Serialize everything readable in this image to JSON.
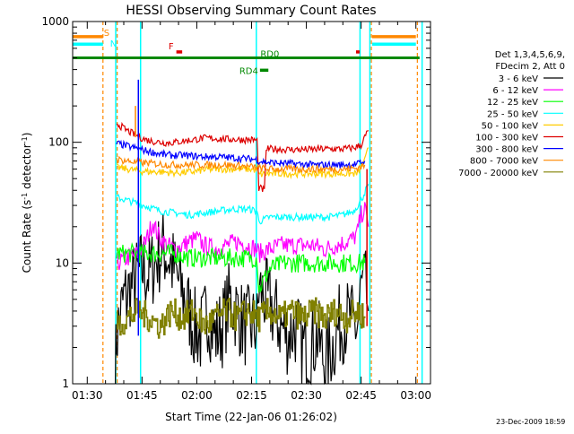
{
  "chart_data": {
    "type": "line",
    "title": "HESSI Observing Summary Count Rates",
    "xlabel": "Start Time (22-Jan-06 01:26:02)",
    "ylabel": "Count Rate (s^-1 detector^-1)",
    "ylabel_main": "Count Rate (s",
    "ylabel_sup1": "-1",
    "ylabel_mid": " detector",
    "ylabel_sup2": "-1",
    "ylabel_end": ")",
    "y_scale": "log",
    "ylim": [
      1,
      1000
    ],
    "xlim": [
      "01:26",
      "03:04"
    ],
    "x_ticks": [
      "01:30",
      "01:45",
      "02:00",
      "02:15",
      "02:30",
      "02:45",
      "03:00"
    ],
    "x_tick_minutes": [
      90,
      105,
      120,
      135,
      150,
      165,
      180
    ],
    "y_ticks": [
      "1",
      "10",
      "100",
      "1000"
    ],
    "grid": false,
    "legend_position": "right",
    "legend_header": [
      "Det 1,3,4,5,6,9,",
      "FDecim 2, Att 0"
    ],
    "series": [
      {
        "name": "3 - 6 keV",
        "color": "#000000",
        "x": [
          97.7,
          98,
          100,
          103,
          105,
          107,
          109,
          111,
          113,
          115,
          117,
          119,
          121,
          123,
          125,
          127,
          129,
          131,
          133,
          135,
          136.5,
          137,
          139,
          141,
          143,
          145,
          147,
          149,
          151,
          153,
          155,
          157,
          159,
          161,
          163,
          164,
          165,
          166,
          167
        ],
        "y": [
          1,
          2.5,
          5,
          7,
          9,
          8,
          11,
          13,
          10,
          7,
          5,
          3,
          2.5,
          4,
          2.5,
          3,
          5,
          4,
          3,
          3,
          3,
          6,
          5,
          4,
          3,
          2.5,
          3,
          2,
          2,
          2.5,
          1.5,
          2,
          3,
          3.5,
          3,
          3,
          6,
          6.5,
          4
        ]
      },
      {
        "name": "6 - 12 keV",
        "color": "#ff00ff",
        "x": [
          98,
          101,
          104,
          106,
          108,
          109,
          110,
          112,
          114,
          116,
          118,
          120,
          122,
          125,
          128,
          131,
          134,
          136.5,
          137,
          140,
          143,
          146,
          149,
          152,
          155,
          158,
          161,
          163,
          164,
          165,
          166,
          167
        ],
        "y": [
          10,
          11,
          12,
          15,
          22,
          18,
          16,
          14,
          13,
          14,
          15,
          16,
          14,
          13,
          14,
          15,
          14,
          13,
          12,
          13,
          14,
          14,
          14,
          14,
          13,
          14,
          15,
          16,
          18,
          25,
          28,
          20
        ]
      },
      {
        "name": "12 - 25 keV",
        "color": "#00ff00",
        "x": [
          98,
          102,
          106,
          110,
          114,
          118,
          122,
          126,
          130,
          134,
          136.5,
          137,
          140,
          144,
          148,
          152,
          156,
          160,
          164,
          166
        ],
        "y": [
          12,
          12,
          12,
          12,
          12,
          11,
          11,
          11,
          11,
          11,
          11,
          6,
          9,
          10,
          10,
          10,
          10,
          10,
          10,
          10
        ]
      },
      {
        "name": "25 - 50 keV",
        "color": "#00ffff",
        "x": [
          98,
          101,
          104,
          107,
          110,
          114,
          118,
          122,
          126,
          130,
          134,
          136.5,
          137,
          140,
          144,
          148,
          152,
          156,
          160,
          163,
          165,
          167
        ],
        "y": [
          35,
          33,
          31,
          29,
          27,
          26,
          25,
          26,
          27,
          28,
          28,
          27,
          22,
          24,
          24,
          24,
          24,
          24,
          25,
          27,
          33,
          45
        ]
      },
      {
        "name": "50 - 100 keV",
        "color": "#ffcc00",
        "x": [
          98,
          101,
          104,
          107,
          110,
          113,
          116,
          119,
          122,
          125,
          128,
          131,
          134,
          136.5,
          137,
          140,
          144,
          148,
          152,
          156,
          160,
          164,
          166,
          167
        ],
        "y": [
          62,
          60,
          58,
          57,
          57,
          56,
          56,
          57,
          59,
          60,
          60,
          60,
          60,
          59,
          54,
          55,
          55,
          55,
          55,
          55,
          55,
          55,
          70,
          90
        ]
      },
      {
        "name": "100 - 300 keV",
        "color": "#dd0000",
        "x": [
          98,
          100,
          102,
          104,
          106,
          108,
          110,
          112,
          114,
          116,
          118,
          120,
          122,
          124,
          126,
          128,
          130,
          132,
          134,
          136.5,
          137,
          138.5,
          139,
          142,
          145,
          148,
          151,
          154,
          157,
          160,
          163,
          165,
          166,
          167
        ],
        "y": [
          145,
          130,
          120,
          112,
          105,
          102,
          100,
          99,
          100,
          102,
          104,
          106,
          108,
          108,
          107,
          106,
          106,
          105,
          105,
          104,
          42,
          40,
          88,
          88,
          87,
          87,
          87,
          88,
          88,
          88,
          90,
          95,
          110,
          125
        ]
      },
      {
        "name": "300 - 800 keV",
        "color": "#0000ff",
        "x": [
          98,
          101,
          104,
          107,
          110,
          113,
          116,
          119,
          122,
          125,
          128,
          131,
          134,
          136.5,
          137,
          140,
          144,
          148,
          152,
          156,
          160,
          164,
          166
        ],
        "y": [
          98,
          93,
          88,
          84,
          80,
          78,
          78,
          77,
          76,
          76,
          75,
          74,
          73,
          72,
          70,
          68,
          67,
          66,
          65,
          65,
          65,
          66,
          70
        ]
      },
      {
        "name": "800 - 7000 keV",
        "color": "#ff8800",
        "x": [
          98,
          101,
          104,
          107,
          110,
          113,
          116,
          119,
          122,
          125,
          128,
          131,
          134,
          136.5,
          137,
          140,
          144,
          148,
          152,
          156,
          160,
          164,
          166
        ],
        "y": [
          72,
          70,
          68,
          67,
          66,
          65,
          65,
          65,
          65,
          65,
          65,
          64,
          63,
          62,
          61,
          60,
          60,
          60,
          60,
          60,
          60,
          61,
          65
        ]
      },
      {
        "name": "7000 - 20000 keV",
        "color": "#808000",
        "x": [
          98,
          101,
          104,
          107,
          110,
          113,
          116,
          119,
          122,
          125,
          128,
          131,
          134,
          137,
          140,
          143,
          146,
          149,
          152,
          155,
          158,
          161,
          164,
          166
        ],
        "y": [
          3,
          3.5,
          4,
          3.5,
          3,
          4,
          3.5,
          4,
          3,
          3.5,
          4,
          3.5,
          4,
          3.5,
          4,
          3.5,
          4,
          3.5,
          4,
          3.5,
          4,
          3.5,
          4,
          3.5
        ]
      }
    ],
    "spikes": [
      {
        "x": 104,
        "y_from": 2.5,
        "y_to": 330,
        "color": "#0000ff"
      },
      {
        "x": 103.2,
        "y_from": 110,
        "y_to": 200,
        "color": "#ff8800"
      },
      {
        "x": 166.6,
        "y_from": 3,
        "y_to": 60,
        "color": "#dd0000"
      }
    ],
    "flags": [
      {
        "label": "S",
        "color": "#ff8800",
        "segments": [
          [
            86,
            94.3
          ],
          [
            168,
            180
          ]
        ],
        "level": 750
      },
      {
        "label": "N",
        "color": "#00ffff",
        "segments": [
          [
            86,
            94.3
          ],
          [
            168,
            180
          ]
        ],
        "level": 650
      },
      {
        "label": "F",
        "color": "#dd0000",
        "segments": [
          [
            114.4,
            116
          ],
          [
            163.6,
            164.6
          ]
        ],
        "level": 560
      },
      {
        "label": "RD0",
        "color": "#008800",
        "segments": [
          [
            86,
            181
          ]
        ],
        "level": 500
      },
      {
        "label": "RD4",
        "color": "#008800",
        "segments": [
          [
            137.3,
            139.6
          ]
        ],
        "level": 395
      }
    ],
    "night_lines": {
      "cyan": [
        97.8,
        104.6,
        136.3,
        164.7,
        167.4,
        181.7
      ],
      "orange_dashed": [
        94.3,
        98.2,
        167.8,
        180.4
      ]
    }
  },
  "footer": {
    "timestamp": "23-Dec-2009 18:59"
  }
}
